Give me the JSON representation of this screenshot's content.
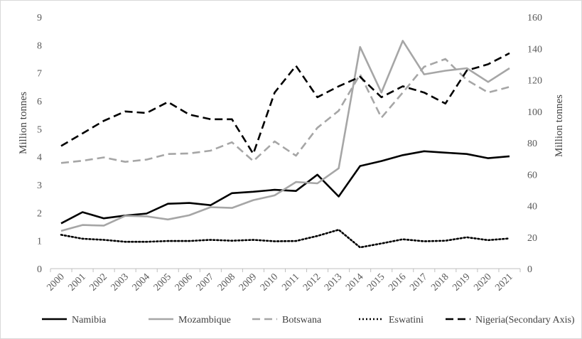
{
  "chart_data": {
    "type": "line",
    "title": "",
    "categories": [
      "2000",
      "2001",
      "2002",
      "2003",
      "2004",
      "2005",
      "2006",
      "2007",
      "2008",
      "2009",
      "2010",
      "2011",
      "2012",
      "2013",
      "2014",
      "2015",
      "2016",
      "2017",
      "2018",
      "2019",
      "2020",
      "2021"
    ],
    "ylabel": "Million tonnes",
    "y2label": "Million tonnes",
    "ylim": [
      0,
      9
    ],
    "y2lim": [
      0,
      160
    ],
    "yticks": [
      "0",
      "1",
      "2",
      "3",
      "4",
      "5",
      "6",
      "7",
      "8",
      "9"
    ],
    "y2ticks": [
      "0",
      "20",
      "40",
      "60",
      "80",
      "100",
      "120",
      "140",
      "160"
    ],
    "grid": false,
    "legend_position": "bottom",
    "series": [
      {
        "name": "Namibia",
        "axis": "primary",
        "color": "#000000",
        "dash": "solid",
        "values": [
          1.62,
          2.02,
          1.8,
          1.9,
          1.97,
          2.32,
          2.35,
          2.27,
          2.7,
          2.75,
          2.82,
          2.78,
          3.36,
          2.58,
          3.67,
          3.85,
          4.06,
          4.2,
          4.15,
          4.1,
          3.95,
          4.02
        ]
      },
      {
        "name": "Mozambique",
        "axis": "primary",
        "color": "#a6a6a6",
        "dash": "solid",
        "values": [
          1.35,
          1.56,
          1.54,
          1.89,
          1.87,
          1.76,
          1.91,
          2.2,
          2.17,
          2.45,
          2.62,
          3.1,
          3.05,
          3.59,
          7.93,
          6.3,
          8.15,
          6.95,
          7.08,
          7.17,
          6.68,
          7.17
        ]
      },
      {
        "name": "Botswana",
        "axis": "primary",
        "color": "#a6a6a6",
        "dash": "dashed",
        "values": [
          3.78,
          3.86,
          3.98,
          3.82,
          3.9,
          4.1,
          4.12,
          4.22,
          4.52,
          3.85,
          4.55,
          4.04,
          5.04,
          5.65,
          6.95,
          5.4,
          6.3,
          7.22,
          7.5,
          6.75,
          6.3,
          6.5
        ]
      },
      {
        "name": "Eswatini",
        "axis": "primary",
        "color": "#000000",
        "dash": "dotted",
        "values": [
          1.21,
          1.07,
          1.03,
          0.96,
          0.96,
          0.99,
          0.99,
          1.03,
          1.0,
          1.03,
          0.98,
          0.99,
          1.17,
          1.39,
          0.76,
          0.9,
          1.05,
          0.98,
          1.0,
          1.12,
          1.02,
          1.08
        ]
      },
      {
        "name": "Nigeria(Secondary Axis)",
        "axis": "secondary",
        "color": "#000000",
        "dash": "dashed",
        "values": [
          78,
          86,
          94,
          100,
          99,
          106,
          98,
          95,
          95,
          73,
          112,
          129,
          109,
          116,
          122,
          109,
          116,
          112,
          105,
          126,
          130,
          137
        ]
      }
    ]
  }
}
